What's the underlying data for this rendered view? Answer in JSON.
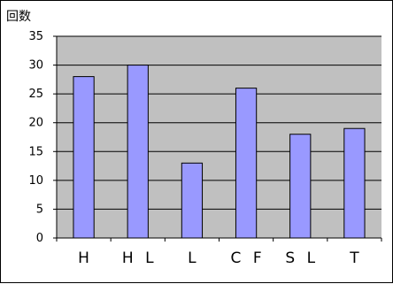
{
  "chart_data": {
    "type": "bar",
    "ylabel": "回数",
    "categories": [
      "H",
      "HL",
      "L",
      "CF",
      "SL",
      "T"
    ],
    "category_labels": [
      "H",
      "H L",
      "L",
      "C F",
      "S L",
      "T"
    ],
    "values": [
      28,
      30,
      13,
      26,
      18,
      19
    ],
    "ylim": [
      0,
      35
    ],
    "yticks": [
      0,
      5,
      10,
      15,
      20,
      25,
      30,
      35
    ],
    "grid": true,
    "legend": "none"
  },
  "colors": {
    "plot_background": "#c0c0c0",
    "bar_fill": "#9999ff",
    "bar_stroke": "#000000",
    "gridline": "#000000"
  }
}
